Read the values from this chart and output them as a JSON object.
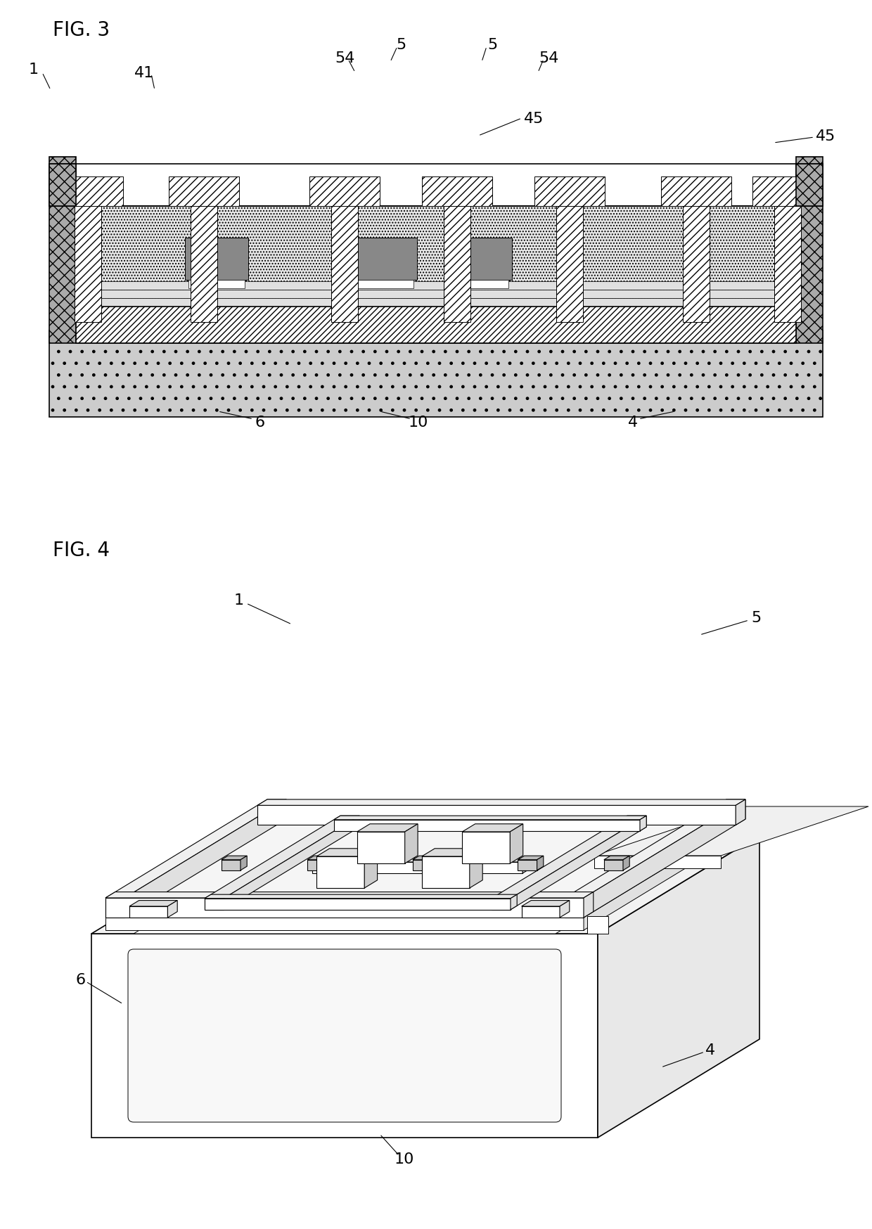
{
  "fig_width": 12.4,
  "fig_height": 17.49,
  "bg": "#ffffff",
  "fig3_title": "FIG. 3",
  "fig4_title": "FIG. 4",
  "lw_main": 1.2,
  "lw_thin": 0.7,
  "fs_label": 16,
  "fs_title": 20
}
